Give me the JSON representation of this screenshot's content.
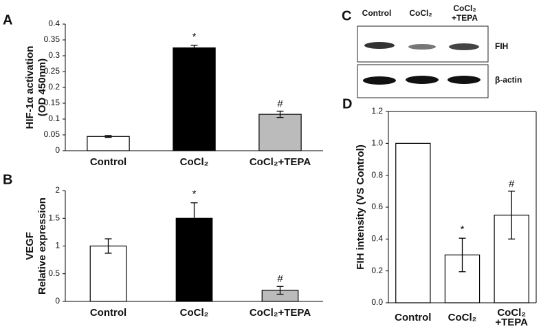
{
  "chart_data": [
    {
      "type": "bar",
      "panel_label": "A",
      "ylabel": [
        "HIF-1α activation",
        "(OD 450nm)"
      ],
      "categories": [
        "Control",
        "CoCl₂",
        "CoCl₂+TEPA"
      ],
      "values": [
        0.045,
        0.325,
        0.115
      ],
      "errors": [
        0.003,
        0.008,
        0.01
      ],
      "colors": [
        "#ffffff",
        "#000000",
        "#bbbbbb"
      ],
      "annotations": [
        null,
        "*",
        "#"
      ],
      "ylim": [
        0,
        0.4
      ],
      "yticks": [
        0,
        0.05,
        0.1,
        0.15,
        0.2,
        0.25,
        0.3,
        0.35,
        0.4
      ]
    },
    {
      "type": "bar",
      "panel_label": "B",
      "ylabel": [
        "VEGF",
        "Relative expression"
      ],
      "categories": [
        "Control",
        "CoCl₂",
        "CoCl₂+TEPA"
      ],
      "values": [
        1.0,
        1.5,
        0.2
      ],
      "errors": [
        0.13,
        0.28,
        0.07
      ],
      "colors": [
        "#ffffff",
        "#000000",
        "#bbbbbb"
      ],
      "annotations": [
        null,
        "*",
        "#"
      ],
      "ylim": [
        0,
        2
      ],
      "yticks": [
        0,
        0.5,
        1,
        1.5,
        2
      ]
    },
    {
      "type": "bar",
      "panel_label": "D",
      "ylabel": [
        "FIH intensity (VS Control)"
      ],
      "categories": [
        "Control",
        "CoCl₂",
        "CoCl₂+TEPA"
      ],
      "values": [
        1.0,
        0.3,
        0.55
      ],
      "errors": [
        0,
        0.105,
        0.15
      ],
      "colors": [
        "#ffffff",
        "#ffffff",
        "#ffffff"
      ],
      "annotations": [
        null,
        "*",
        "#"
      ],
      "ylim": [
        0,
        1.2
      ],
      "yticks": [
        {
          "value": 0,
          "label": "0.0"
        },
        0.2,
        0.4,
        0.6,
        0.8,
        {
          "value": 1,
          "label": "1.0"
        },
        1.2
      ]
    }
  ],
  "blot": {
    "panel_label": "C",
    "lanes": [
      "Control",
      "CoCl₂",
      "CoCl₂+TEPA"
    ],
    "rows": [
      "FIH",
      "β-actin"
    ]
  }
}
